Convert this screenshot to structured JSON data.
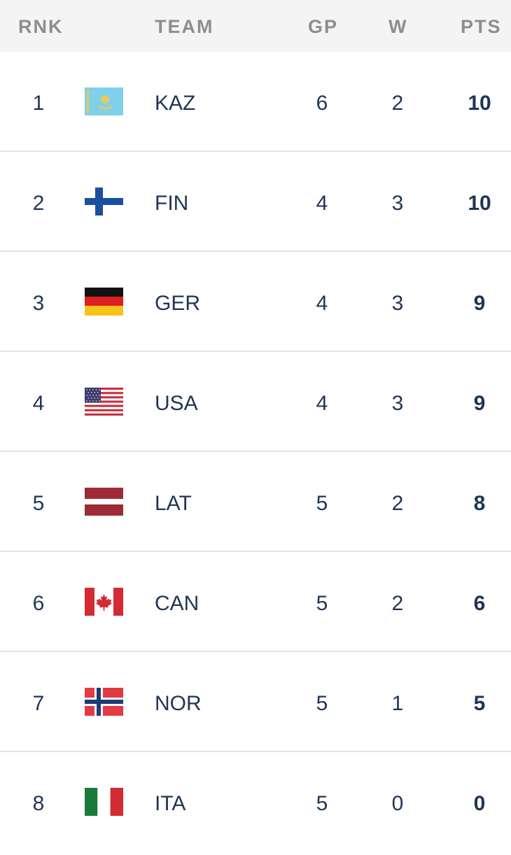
{
  "header": {
    "rank": "RNK",
    "team": "TEAM",
    "gp": "GP",
    "w": "W",
    "pts": "PTS"
  },
  "rows": [
    {
      "rank": "1",
      "team": "KAZ",
      "flag": "kazakhstan-flag-icon",
      "gp": "6",
      "w": "2",
      "pts": "10"
    },
    {
      "rank": "2",
      "team": "FIN",
      "flag": "finland-flag-icon",
      "gp": "4",
      "w": "3",
      "pts": "10"
    },
    {
      "rank": "3",
      "team": "GER",
      "flag": "germany-flag-icon",
      "gp": "4",
      "w": "3",
      "pts": "9"
    },
    {
      "rank": "4",
      "team": "USA",
      "flag": "usa-flag-icon",
      "gp": "4",
      "w": "3",
      "pts": "9"
    },
    {
      "rank": "5",
      "team": "LAT",
      "flag": "latvia-flag-icon",
      "gp": "5",
      "w": "2",
      "pts": "8"
    },
    {
      "rank": "6",
      "team": "CAN",
      "flag": "canada-flag-icon",
      "gp": "5",
      "w": "2",
      "pts": "6"
    },
    {
      "rank": "7",
      "team": "NOR",
      "flag": "norway-flag-icon",
      "gp": "5",
      "w": "1",
      "pts": "5"
    },
    {
      "rank": "8",
      "team": "ITA",
      "flag": "italy-flag-icon",
      "gp": "5",
      "w": "0",
      "pts": "0"
    }
  ],
  "colors": {
    "text": "#1f3555",
    "header_text": "#8e8e8e",
    "header_bg": "#f4f4f4",
    "divider": "#e4e4e4"
  }
}
